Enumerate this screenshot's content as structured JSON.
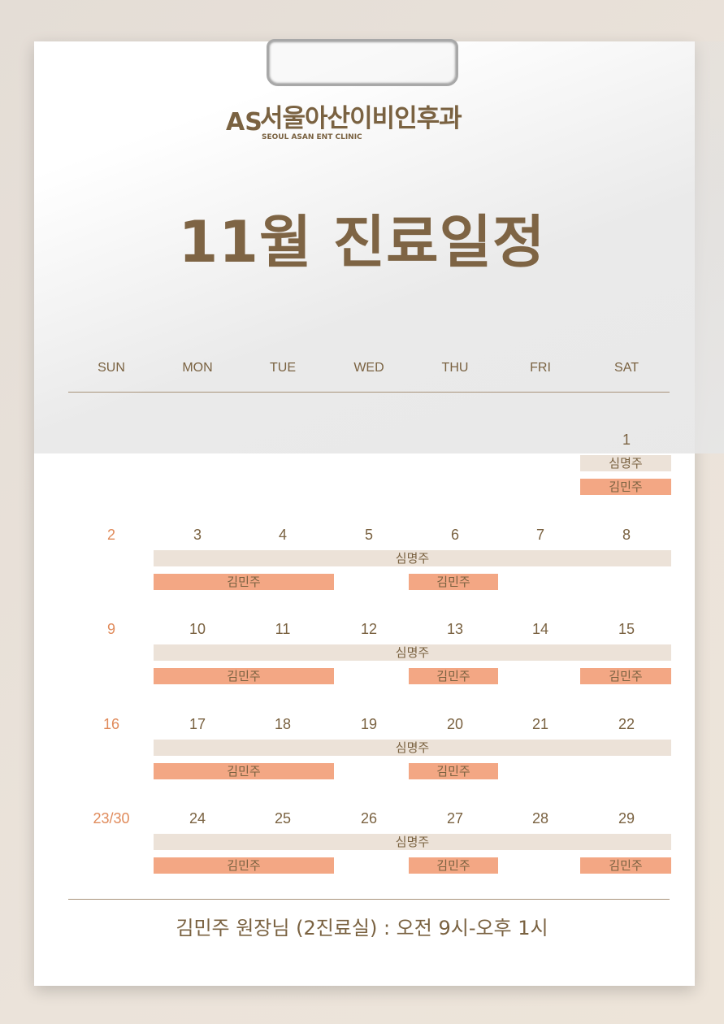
{
  "clinic": {
    "logo_mark": "AS",
    "name_ko": "서울아산이비인후과",
    "name_en": "SEOUL ASAN ENT CLINIC"
  },
  "title": "11월 진료일정",
  "weekdays": [
    "SUN",
    "MON",
    "TUE",
    "WED",
    "THU",
    "FRI",
    "SAT"
  ],
  "colors": {
    "brown": "#7a6241",
    "sunday": "#e08a5a",
    "shim_bar": "#ece2d8",
    "kim_bar": "#f3a784"
  },
  "weeks": [
    {
      "days": [
        "",
        "",
        "",
        "",
        "",
        "",
        "1"
      ],
      "bars": [
        {
          "doctor": "심명주",
          "type": "shim",
          "from": 6,
          "to": 6,
          "row": 0
        },
        {
          "doctor": "김민주",
          "type": "kim",
          "from": 6,
          "to": 6,
          "row": 1
        }
      ]
    },
    {
      "days": [
        "2",
        "3",
        "4",
        "5",
        "6",
        "7",
        "8"
      ],
      "bars": [
        {
          "doctor": "심명주",
          "type": "shim",
          "from": 1,
          "to": 6,
          "row": 0
        },
        {
          "doctor": "김민주",
          "type": "kim",
          "from": 1,
          "to": 2,
          "row": 1
        },
        {
          "doctor": "김민주",
          "type": "kim",
          "from": 4,
          "to": 4,
          "row": 1
        }
      ]
    },
    {
      "days": [
        "9",
        "10",
        "11",
        "12",
        "13",
        "14",
        "15"
      ],
      "bars": [
        {
          "doctor": "심명주",
          "type": "shim",
          "from": 1,
          "to": 6,
          "row": 0
        },
        {
          "doctor": "김민주",
          "type": "kim",
          "from": 1,
          "to": 2,
          "row": 1
        },
        {
          "doctor": "김민주",
          "type": "kim",
          "from": 4,
          "to": 4,
          "row": 1
        },
        {
          "doctor": "김민주",
          "type": "kim",
          "from": 6,
          "to": 6,
          "row": 1
        }
      ]
    },
    {
      "days": [
        "16",
        "17",
        "18",
        "19",
        "20",
        "21",
        "22"
      ],
      "bars": [
        {
          "doctor": "심명주",
          "type": "shim",
          "from": 1,
          "to": 6,
          "row": 0
        },
        {
          "doctor": "김민주",
          "type": "kim",
          "from": 1,
          "to": 2,
          "row": 1
        },
        {
          "doctor": "김민주",
          "type": "kim",
          "from": 4,
          "to": 4,
          "row": 1
        }
      ]
    },
    {
      "days": [
        "23/30",
        "24",
        "25",
        "26",
        "27",
        "28",
        "29"
      ],
      "bars": [
        {
          "doctor": "심명주",
          "type": "shim",
          "from": 1,
          "to": 6,
          "row": 0
        },
        {
          "doctor": "김민주",
          "type": "kim",
          "from": 1,
          "to": 2,
          "row": 1
        },
        {
          "doctor": "김민주",
          "type": "kim",
          "from": 4,
          "to": 4,
          "row": 1
        },
        {
          "doctor": "김민주",
          "type": "kim",
          "from": 6,
          "to": 6,
          "row": 1
        }
      ]
    }
  ],
  "footer": "김민주 원장님 (2진료실) : 오전 9시-오후 1시"
}
